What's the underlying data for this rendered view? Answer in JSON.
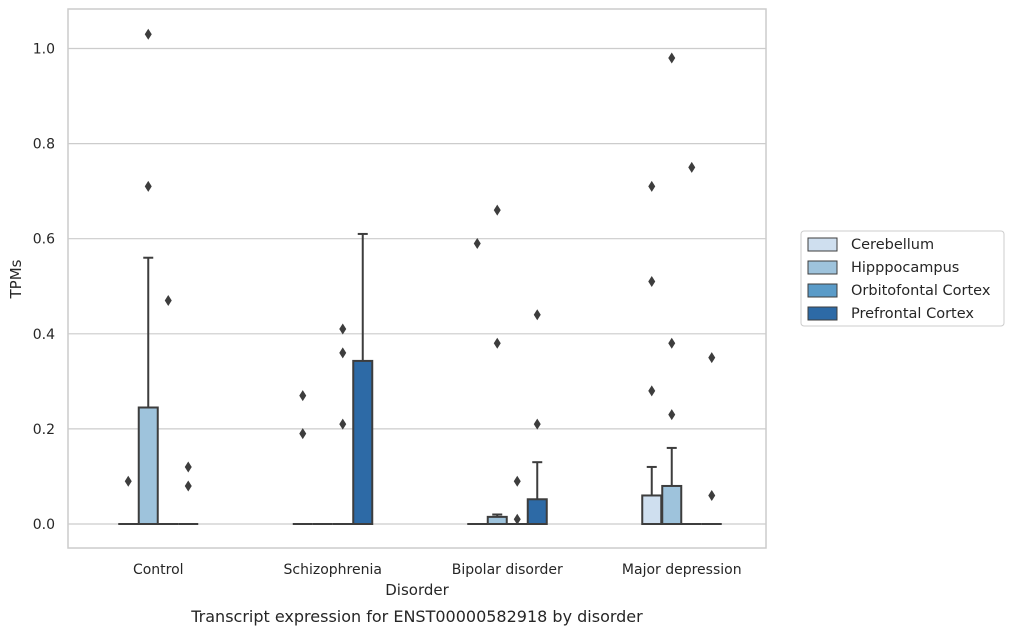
{
  "chart_data": {
    "type": "box",
    "title": "",
    "caption": "Transcript expression for ENST00000582918 by disorder",
    "xlabel": "Disorder",
    "ylabel": "TPMs",
    "ylim": [
      -0.05,
      1.08
    ],
    "yticks": [
      0.0,
      0.2,
      0.4,
      0.6,
      0.8,
      1.0
    ],
    "ytick_labels": [
      "0.0",
      "0.2",
      "0.4",
      "0.6",
      "0.8",
      "1.0"
    ],
    "grid": "horizontal",
    "legend_position": "right",
    "categories": [
      "Control",
      "Schizophrenia",
      "Bipolar disorder",
      "Major depression"
    ],
    "series": [
      {
        "name": "Cerebellum",
        "color": "#cfdfef",
        "boxes": [
          {
            "q1": 0,
            "median": 0,
            "q3": 0,
            "whisker_low": 0,
            "whisker_high": 0,
            "outliers": [
              0.09
            ]
          },
          {
            "q1": 0,
            "median": 0,
            "q3": 0,
            "whisker_low": 0,
            "whisker_high": 0,
            "outliers": [
              0.19,
              0.27
            ]
          },
          {
            "q1": 0,
            "median": 0,
            "q3": 0,
            "whisker_low": 0,
            "whisker_high": 0,
            "outliers": [
              0.59
            ]
          },
          {
            "q1": 0,
            "median": 0,
            "q3": 0.06,
            "whisker_low": 0,
            "whisker_high": 0.12,
            "outliers": [
              0.28,
              0.51,
              0.71
            ]
          }
        ]
      },
      {
        "name": "Hipppocampus",
        "color": "#9ec3dc",
        "boxes": [
          {
            "q1": 0,
            "median": 0,
            "q3": 0.245,
            "whisker_low": 0,
            "whisker_high": 0.56,
            "outliers": [
              0.71,
              1.03
            ]
          },
          {
            "q1": 0,
            "median": 0,
            "q3": 0,
            "whisker_low": 0,
            "whisker_high": 0,
            "outliers": []
          },
          {
            "q1": 0,
            "median": 0,
            "q3": 0.015,
            "whisker_low": 0,
            "whisker_high": 0.02,
            "outliers": [
              0.38,
              0.66
            ]
          },
          {
            "q1": 0,
            "median": 0,
            "q3": 0.08,
            "whisker_low": 0,
            "whisker_high": 0.16,
            "outliers": [
              0.23,
              0.38,
              0.98
            ]
          }
        ]
      },
      {
        "name": "Orbitofontal Cortex",
        "color": "#5a9bc8",
        "boxes": [
          {
            "q1": 0,
            "median": 0,
            "q3": 0,
            "whisker_low": 0,
            "whisker_high": 0,
            "outliers": [
              0.47
            ]
          },
          {
            "q1": 0,
            "median": 0,
            "q3": 0,
            "whisker_low": 0,
            "whisker_high": 0,
            "outliers": [
              0.21,
              0.36,
              0.41
            ]
          },
          {
            "q1": 0,
            "median": 0,
            "q3": 0,
            "whisker_low": 0,
            "whisker_high": 0,
            "outliers": [
              0.01,
              0.09
            ]
          },
          {
            "q1": 0,
            "median": 0,
            "q3": 0,
            "whisker_low": 0,
            "whisker_high": 0,
            "outliers": [
              0.75
            ]
          }
        ]
      },
      {
        "name": "Prefrontal Cortex",
        "color": "#2d6aa6",
        "boxes": [
          {
            "q1": 0,
            "median": 0,
            "q3": 0,
            "whisker_low": 0,
            "whisker_high": 0,
            "outliers": [
              0.08,
              0.12
            ]
          },
          {
            "q1": 0,
            "median": 0,
            "q3": 0.343,
            "whisker_low": 0,
            "whisker_high": 0.61,
            "outliers": []
          },
          {
            "q1": 0,
            "median": 0,
            "q3": 0.052,
            "whisker_low": 0,
            "whisker_high": 0.13,
            "outliers": [
              0.21,
              0.44
            ]
          },
          {
            "q1": 0,
            "median": 0,
            "q3": 0,
            "whisker_low": 0,
            "whisker_high": 0,
            "outliers": [
              0.06,
              0.35
            ]
          }
        ]
      }
    ]
  }
}
